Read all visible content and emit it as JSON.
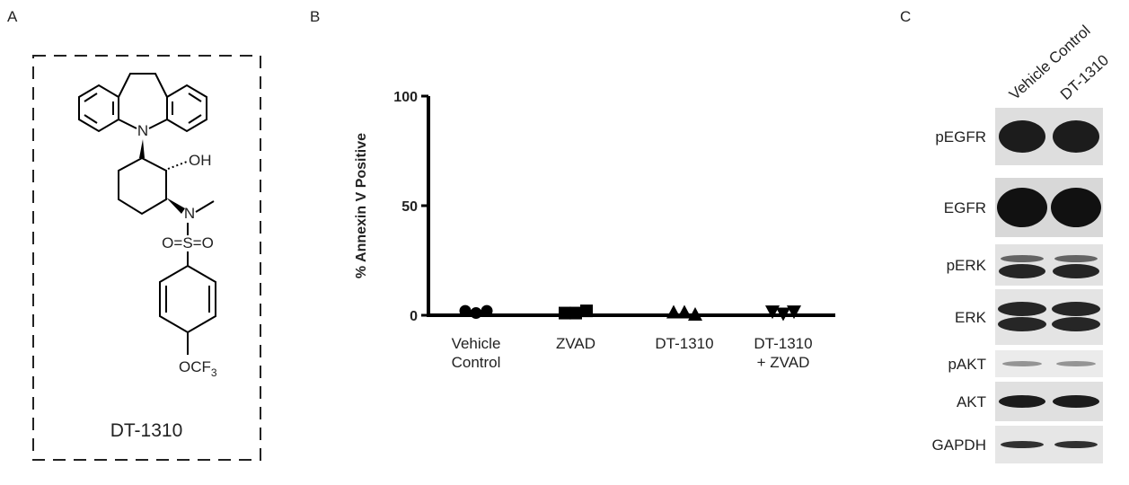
{
  "panel_a": {
    "label": "A",
    "compound": "DT-1310",
    "atom_labels": [
      "N",
      "OH",
      "N",
      "O=S=O",
      {
        "text": "OCF",
        "sub": "3"
      }
    ]
  },
  "panel_b_label": "B",
  "chart_data": {
    "type": "dotplot",
    "ylabel": "% Annexin V Positive",
    "categories": [
      [
        "Vehicle",
        "Control"
      ],
      [
        "ZVAD"
      ],
      [
        "DT-1310"
      ],
      [
        "DT-1310",
        "+ ZVAD"
      ]
    ],
    "values": [
      [
        2,
        1,
        2
      ],
      [
        1,
        1,
        2
      ],
      [
        1,
        1,
        0
      ],
      [
        2,
        1,
        2
      ]
    ],
    "markers": [
      "circle",
      "square",
      "triangle-up",
      "triangle-down"
    ],
    "color": "#000000",
    "ylim": [
      0,
      100
    ],
    "yticks": [
      0,
      50,
      100
    ]
  },
  "panel_c": {
    "label": "C",
    "lanes": [
      "Vehicle Control",
      "DT-1310"
    ],
    "rows": [
      "pEGFR",
      "EGFR",
      "pERK",
      "ERK",
      "pAKT",
      "AKT",
      "GAPDH"
    ]
  }
}
